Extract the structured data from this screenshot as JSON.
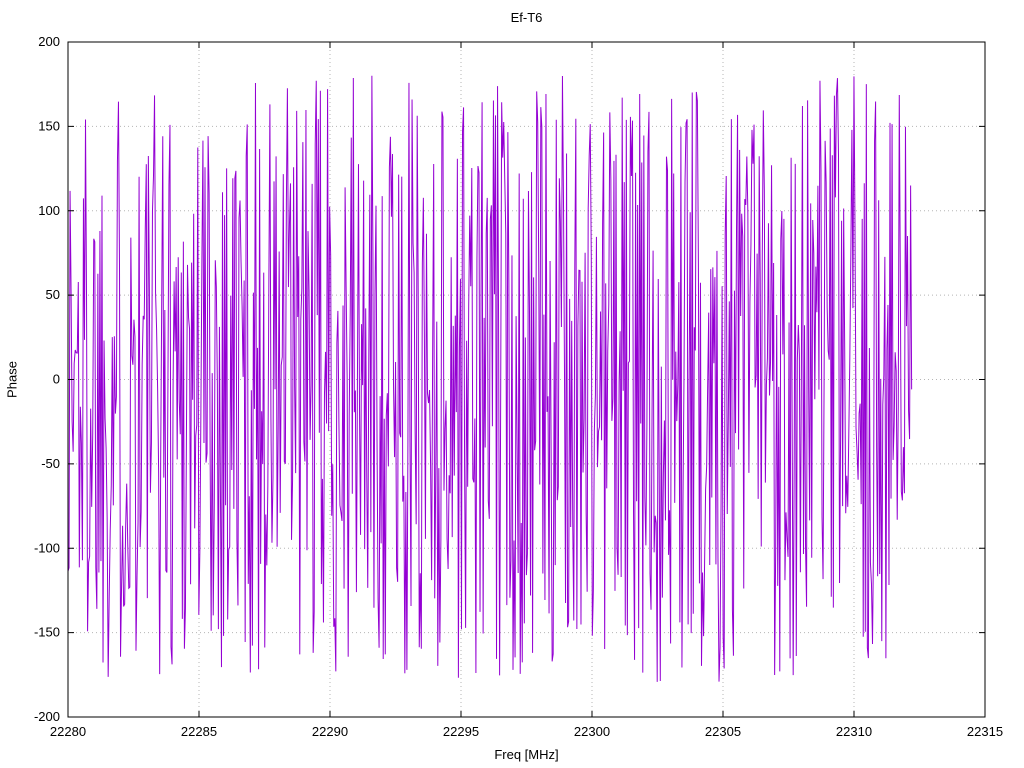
{
  "chart_data": {
    "type": "line",
    "title": "Ef-T6",
    "xlabel": "Freq [MHz]",
    "ylabel": "Phase",
    "xlim": [
      22280,
      22315
    ],
    "ylim": [
      -200,
      200
    ],
    "xticks": [
      22280,
      22285,
      22290,
      22295,
      22300,
      22305,
      22310,
      22315
    ],
    "yticks": [
      -200,
      -150,
      -100,
      -50,
      0,
      50,
      100,
      150,
      200
    ],
    "grid": true,
    "grid_style": "dotted",
    "legend": "none",
    "line_color": "#9400d3",
    "axis_color": "#000000",
    "grid_color": "#b5b5b5",
    "background_color": "#ffffff",
    "series": [
      {
        "name": "phase",
        "description": "Wrapped phase noise: values uniformly scattered between -180 and +180 degrees, consecutive samples connected by line segments producing dense vertical strokes",
        "x_start": 22280.0,
        "x_end": 22312.2,
        "n_points": 820,
        "y_min": -180,
        "y_max": 180,
        "seed": 1337
      }
    ]
  }
}
